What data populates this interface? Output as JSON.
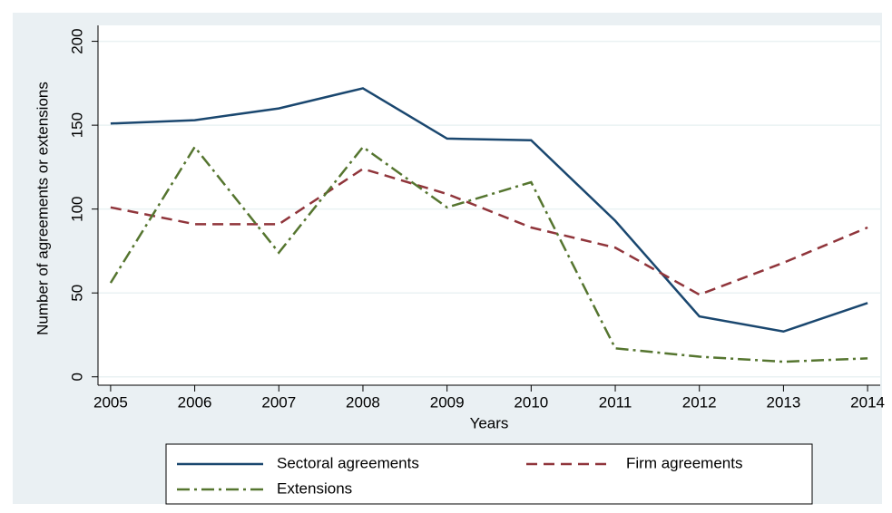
{
  "chart_data": {
    "type": "line",
    "xlabel": "Years",
    "ylabel": "Number of agreements or extensions",
    "x": [
      2005,
      2006,
      2007,
      2008,
      2009,
      2010,
      2011,
      2012,
      2013,
      2014
    ],
    "series": [
      {
        "name": "Sectoral agreements",
        "color": "#1a476f",
        "dash": "solid",
        "values": [
          151,
          153,
          160,
          172,
          142,
          141,
          93,
          36,
          27,
          44
        ]
      },
      {
        "name": "Firm agreements",
        "color": "#90353b",
        "dash": "dash",
        "values": [
          101,
          91,
          91,
          124,
          109,
          89,
          77,
          49,
          68,
          89
        ]
      },
      {
        "name": "Extensions",
        "color": "#55752f",
        "dash": "dashdot",
        "values": [
          56,
          137,
          74,
          137,
          101,
          116,
          17,
          12,
          9,
          11
        ]
      }
    ],
    "xlim": [
      2004.85,
      2014.15
    ],
    "xticks": [
      2005,
      2006,
      2007,
      2008,
      2009,
      2010,
      2011,
      2012,
      2013,
      2014
    ],
    "ylim": [
      -5,
      209.5
    ],
    "yticks": [
      0,
      50,
      100,
      150,
      200
    ],
    "grid": true,
    "legend": "bottom"
  }
}
